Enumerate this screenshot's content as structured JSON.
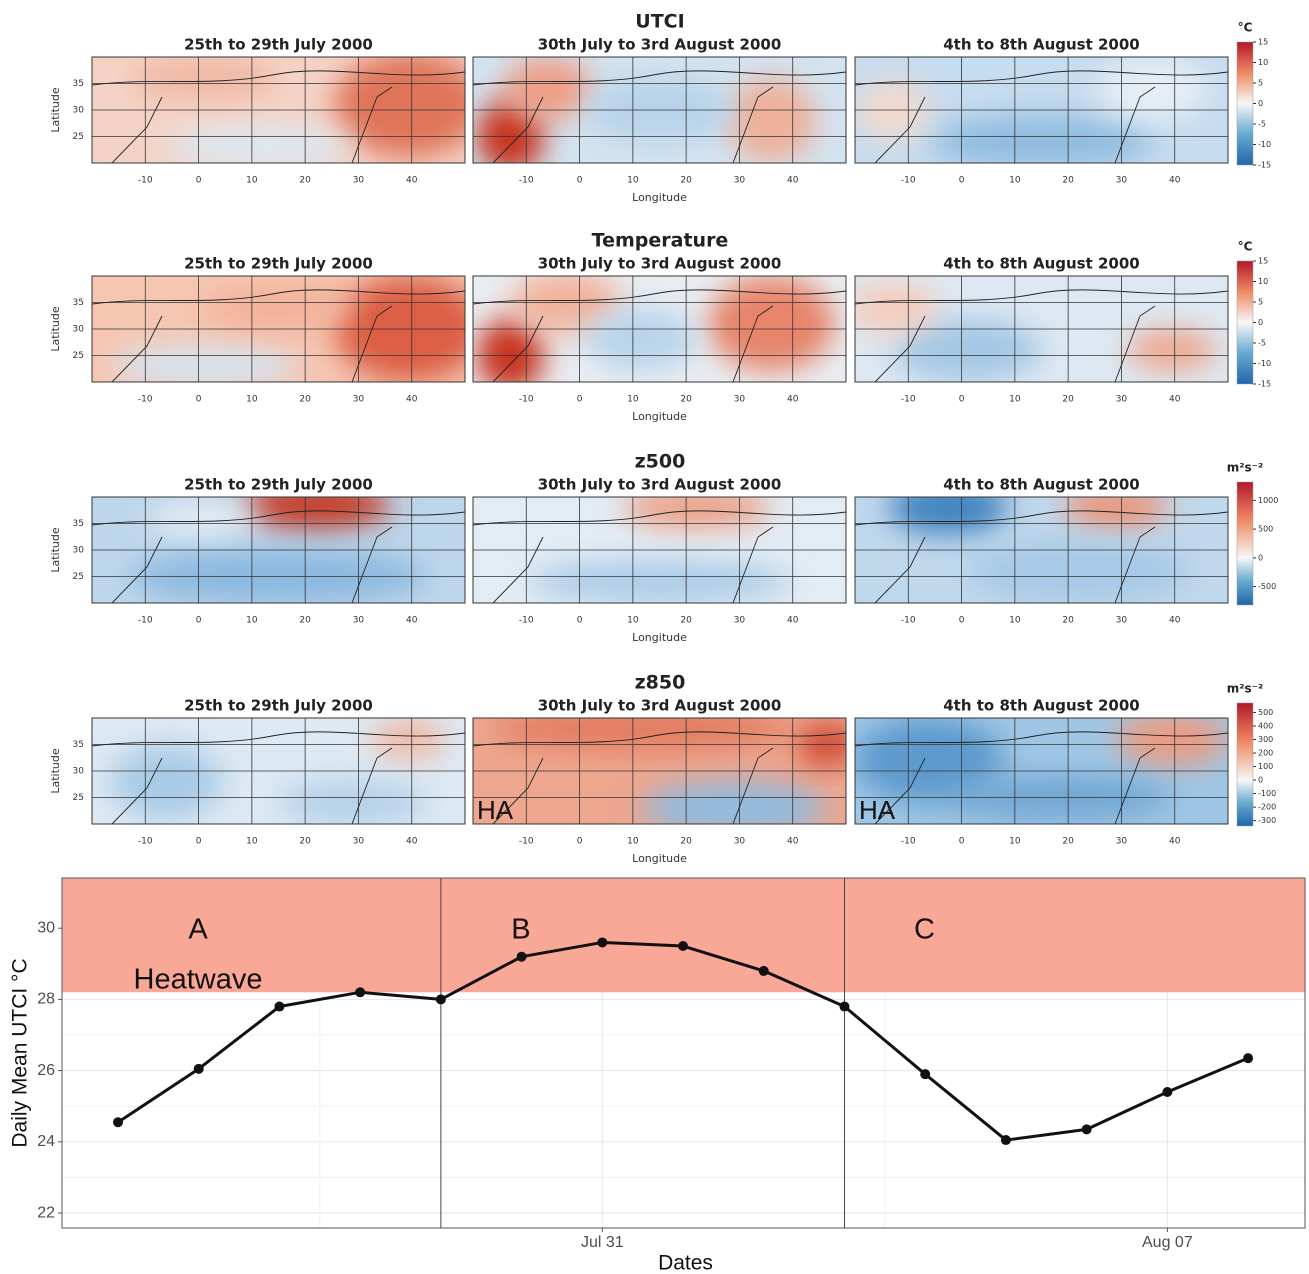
{
  "maps": {
    "xlabel": "Longitude",
    "ylabel": "Latitude",
    "lon_lim": [
      -20,
      50
    ],
    "lat_lim": [
      20,
      40
    ],
    "lon_ticks": [
      -10,
      0,
      10,
      20,
      30,
      40
    ],
    "lat_ticks": [
      25,
      30,
      35
    ],
    "rows": [
      {
        "title": "UTCI",
        "unit": "°C",
        "clim": [
          -15,
          15
        ],
        "cticks": [
          15,
          10,
          5,
          0,
          -5,
          -10,
          -15
        ],
        "panels": [
          {
            "subtitle": "25th to 29th July 2000"
          },
          {
            "subtitle": "30th July to 3rd August 2000"
          },
          {
            "subtitle": "4th to 8th August 2000"
          }
        ]
      },
      {
        "title": "Temperature",
        "unit": "°C",
        "clim": [
          -15,
          15
        ],
        "cticks": [
          15,
          10,
          5,
          0,
          -5,
          -10,
          -15
        ],
        "panels": [
          {
            "subtitle": "25th to 29th July 2000"
          },
          {
            "subtitle": "30th July to 3rd August 2000"
          },
          {
            "subtitle": "4th to 8th August 2000"
          }
        ]
      },
      {
        "title": "z500",
        "unit": "m²s⁻²",
        "clim": [
          -820,
          1320
        ],
        "cticks": [
          1000,
          500,
          0,
          -500
        ],
        "panels": [
          {
            "subtitle": "25th to 29th July 2000"
          },
          {
            "subtitle": "30th July to 3rd August 2000"
          },
          {
            "subtitle": "4th to 8th August 2000"
          }
        ]
      },
      {
        "title": "z850",
        "unit": "m²s⁻²",
        "clim": [
          -340,
          570
        ],
        "cticks": [
          500,
          400,
          300,
          200,
          100,
          0,
          -100,
          -200,
          -300
        ],
        "panels": [
          {
            "subtitle": "25th to 29th July 2000"
          },
          {
            "subtitle": "30th July to 3rd August 2000",
            "annotation": "HA"
          },
          {
            "subtitle": "4th to 8th August 2000",
            "annotation": "HA"
          }
        ]
      }
    ]
  },
  "chart_data": {
    "type": "line",
    "x": [
      "Jul 25",
      "Jul 26",
      "Jul 27",
      "Jul 28",
      "Jul 29",
      "Jul 30",
      "Jul 31",
      "Aug 01",
      "Aug 02",
      "Aug 03",
      "Aug 04",
      "Aug 05",
      "Aug 06",
      "Aug 07",
      "Aug 08"
    ],
    "values": [
      24.55,
      26.05,
      27.8,
      28.2,
      28.0,
      29.2,
      29.6,
      29.5,
      28.8,
      27.8,
      25.9,
      24.05,
      24.35,
      25.4,
      26.35
    ],
    "color": "#111111",
    "xlabel": "Dates",
    "ylabel": "Daily Mean UTCI °C",
    "xticks": [
      "Jul 31",
      "Aug 07"
    ],
    "ylim": [
      21.58,
      31.41
    ],
    "yticks": [
      22,
      24,
      26,
      28,
      30
    ],
    "grid": true,
    "heatwave_threshold": 28.2,
    "heatwave_color": "#f9a898",
    "heatwave_label": "Heatwave",
    "phase_boundaries": [
      "Jul 29",
      "Aug 03"
    ],
    "phases": [
      "A",
      "B",
      "C"
    ]
  }
}
